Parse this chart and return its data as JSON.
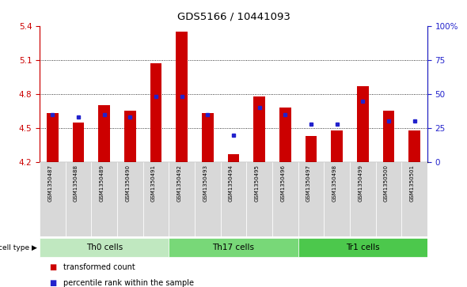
{
  "title": "GDS5166 / 10441093",
  "samples": [
    "GSM1350487",
    "GSM1350488",
    "GSM1350489",
    "GSM1350490",
    "GSM1350491",
    "GSM1350492",
    "GSM1350493",
    "GSM1350494",
    "GSM1350495",
    "GSM1350496",
    "GSM1350497",
    "GSM1350498",
    "GSM1350499",
    "GSM1350500",
    "GSM1350501"
  ],
  "red_values": [
    4.63,
    4.55,
    4.7,
    4.65,
    5.07,
    5.35,
    4.63,
    4.27,
    4.78,
    4.68,
    4.43,
    4.48,
    4.87,
    4.65,
    4.48
  ],
  "blue_percentiles": [
    35,
    33,
    35,
    33,
    48,
    48,
    35,
    20,
    40,
    35,
    28,
    28,
    45,
    30,
    30
  ],
  "y_min": 4.2,
  "y_max": 5.4,
  "y_ticks_left": [
    4.2,
    4.5,
    4.8,
    5.1,
    5.4
  ],
  "y_ticks_right": [
    0,
    25,
    50,
    75,
    100
  ],
  "cell_groups": [
    {
      "label": "Th0 cells",
      "start": 0,
      "end": 5
    },
    {
      "label": "Th17 cells",
      "start": 5,
      "end": 10
    },
    {
      "label": "Tr1 cells",
      "start": 10,
      "end": 15
    }
  ],
  "group_colors": [
    "#c0e8c0",
    "#78d878",
    "#4cc84c"
  ],
  "red_color": "#cc0000",
  "blue_color": "#2222cc",
  "bar_bg_color": "#d8d8d8",
  "legend_red": "transformed count",
  "legend_blue": "percentile rank within the sample",
  "left_axis_color": "#cc0000",
  "right_axis_color": "#2222cc",
  "grid_levels": [
    4.5,
    4.8,
    5.1
  ]
}
